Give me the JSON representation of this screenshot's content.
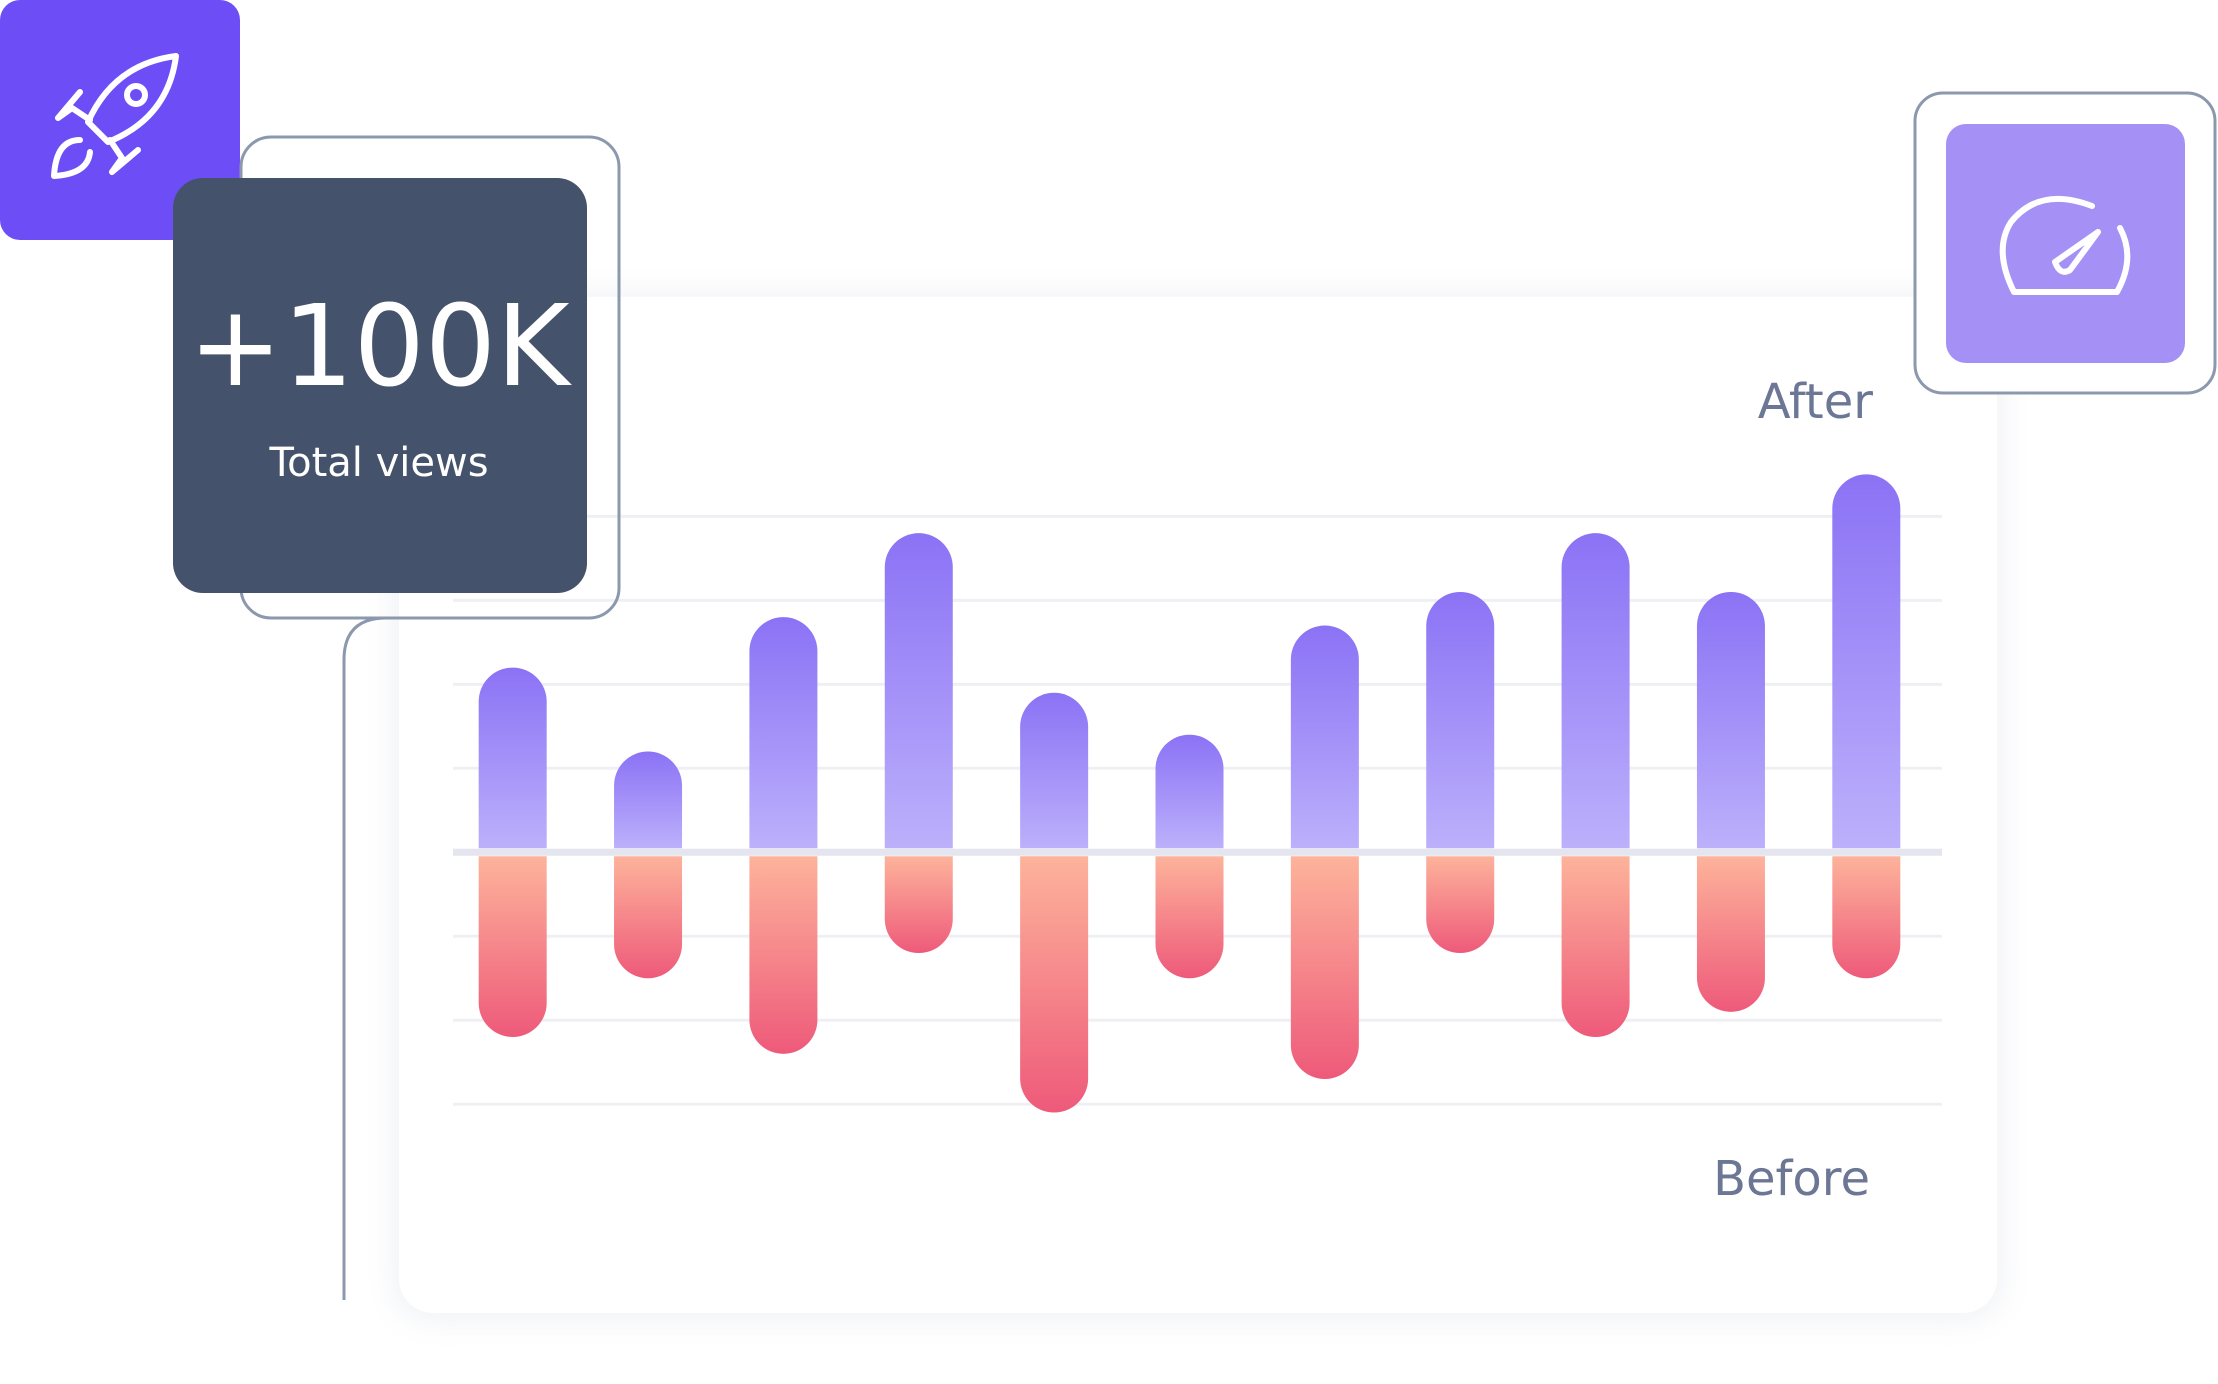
{
  "stat": {
    "value": "+100K",
    "label": "Total views"
  },
  "chart_data": {
    "type": "diverging-bar",
    "categories": [
      null,
      null,
      null,
      null,
      null,
      null,
      null,
      null,
      null,
      null,
      null
    ],
    "series": [
      {
        "name": "After",
        "color": [
          "#8b72f5",
          "#bcb0fb"
        ],
        "values": [
          2.2,
          1.2,
          2.8,
          3.8,
          1.9,
          1.4,
          2.7,
          3.1,
          3.8,
          3.1,
          4.5
        ]
      },
      {
        "name": "Before",
        "color": [
          "#fdb39b",
          "#ee5a7a"
        ],
        "values": [
          -2.2,
          -1.5,
          -2.4,
          -1.2,
          -3.1,
          -1.5,
          -2.7,
          -1.2,
          -2.2,
          -1.9,
          -1.5
        ]
      }
    ],
    "ylim": [
      -3.2,
      4.6
    ],
    "yticks": [
      -3,
      -2,
      -1,
      0,
      1,
      2,
      3,
      4
    ],
    "grid": true
  }
}
